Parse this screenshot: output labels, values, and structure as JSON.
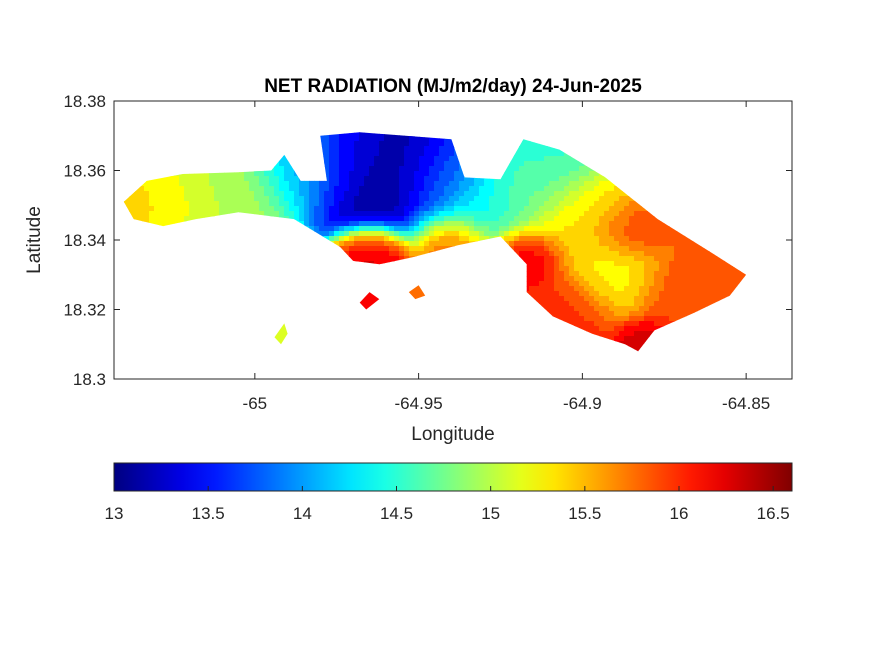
{
  "chart_data": {
    "type": "heatmap",
    "title": "NET RADIATION (MJ/m2/day) 24-Jun-2025",
    "xlabel": "Longitude",
    "ylabel": "Latitude",
    "xlim": [
      -65.043,
      -64.836
    ],
    "ylim": [
      18.3,
      18.38
    ],
    "x_ticks": [
      -65,
      -64.95,
      -64.9,
      -64.85
    ],
    "x_tick_labels": [
      "-65",
      "-64.95",
      "-64.9",
      "-64.85"
    ],
    "y_ticks": [
      18.3,
      18.32,
      18.34,
      18.36,
      18.38
    ],
    "y_tick_labels": [
      "18.3",
      "18.32",
      "18.34",
      "18.36",
      "18.38"
    ],
    "grid": false,
    "colormap": "jet",
    "colorbar": {
      "location": "bottom",
      "range": [
        13,
        16.6
      ],
      "ticks": [
        13,
        13.5,
        14,
        14.5,
        15,
        15.5,
        16,
        16.5
      ],
      "tick_labels": [
        "13",
        "13.5",
        "14",
        "14.5",
        "15",
        "15.5",
        "16",
        "16.5"
      ]
    },
    "island_outline": [
      [
        -65.04,
        18.351
      ],
      [
        -65.033,
        18.357
      ],
      [
        -65.022,
        18.359
      ],
      [
        -65.005,
        18.3595
      ],
      [
        -64.995,
        18.36
      ],
      [
        -64.991,
        18.3645
      ],
      [
        -64.986,
        18.357
      ],
      [
        -64.978,
        18.357
      ],
      [
        -64.98,
        18.37
      ],
      [
        -64.968,
        18.371
      ],
      [
        -64.94,
        18.369
      ],
      [
        -64.936,
        18.358
      ],
      [
        -64.925,
        18.3575
      ],
      [
        -64.918,
        18.369
      ],
      [
        -64.907,
        18.366
      ],
      [
        -64.893,
        18.358
      ],
      [
        -64.877,
        18.346
      ],
      [
        -64.86,
        18.336
      ],
      [
        -64.85,
        18.33
      ],
      [
        -64.855,
        18.324
      ],
      [
        -64.866,
        18.319
      ],
      [
        -64.878,
        18.314
      ],
      [
        -64.883,
        18.308
      ],
      [
        -64.887,
        18.31
      ],
      [
        -64.897,
        18.313
      ],
      [
        -64.909,
        18.318
      ],
      [
        -64.917,
        18.325
      ],
      [
        -64.917,
        18.333
      ],
      [
        -64.925,
        18.341
      ],
      [
        -64.938,
        18.3385
      ],
      [
        -64.952,
        18.335
      ],
      [
        -64.962,
        18.333
      ],
      [
        -64.97,
        18.334
      ],
      [
        -64.974,
        18.338
      ],
      [
        -64.988,
        18.346
      ],
      [
        -65.005,
        18.348
      ],
      [
        -65.018,
        18.346
      ],
      [
        -65.028,
        18.344
      ],
      [
        -65.037,
        18.346
      ],
      [
        -65.04,
        18.351
      ]
    ],
    "islets": [
      [
        [
          -64.994,
          18.312
        ],
        [
          -64.991,
          18.316
        ],
        [
          -64.99,
          18.313
        ],
        [
          -64.992,
          18.31
        ]
      ],
      [
        [
          -64.968,
          18.322
        ],
        [
          -64.965,
          18.325
        ],
        [
          -64.962,
          18.323
        ],
        [
          -64.966,
          18.32
        ]
      ],
      [
        [
          -64.953,
          18.325
        ],
        [
          -64.95,
          18.327
        ],
        [
          -64.948,
          18.324
        ],
        [
          -64.951,
          18.323
        ]
      ]
    ],
    "hotspots": [
      {
        "lon": -64.957,
        "lat": 18.3585,
        "value": 13.0,
        "spread": 0.012
      },
      {
        "lon": -64.97,
        "lat": 18.366,
        "value": 13.3,
        "spread": 0.01
      },
      {
        "lon": -64.942,
        "lat": 18.36,
        "value": 13.7,
        "spread": 0.008
      },
      {
        "lon": -64.985,
        "lat": 18.364,
        "value": 14.2,
        "spread": 0.01
      },
      {
        "lon": -64.935,
        "lat": 18.351,
        "value": 14.3,
        "spread": 0.01
      },
      {
        "lon": -64.912,
        "lat": 18.363,
        "value": 14.5,
        "spread": 0.009
      },
      {
        "lon": -64.92,
        "lat": 18.355,
        "value": 14.7,
        "spread": 0.01
      },
      {
        "lon": -65.012,
        "lat": 18.356,
        "value": 15.0,
        "spread": 0.012
      },
      {
        "lon": -65.03,
        "lat": 18.352,
        "value": 15.4,
        "spread": 0.008
      },
      {
        "lon": -64.963,
        "lat": 18.335,
        "value": 16.3,
        "spread": 0.006
      },
      {
        "lon": -64.94,
        "lat": 18.34,
        "value": 16.1,
        "spread": 0.006
      },
      {
        "lon": -64.917,
        "lat": 18.335,
        "value": 16.3,
        "spread": 0.006
      },
      {
        "lon": -64.905,
        "lat": 18.32,
        "value": 16.0,
        "spread": 0.008
      },
      {
        "lon": -64.885,
        "lat": 18.342,
        "value": 16.0,
        "spread": 0.006
      },
      {
        "lon": -64.87,
        "lat": 18.325,
        "value": 15.9,
        "spread": 0.008
      },
      {
        "lon": -64.858,
        "lat": 18.33,
        "value": 15.8,
        "spread": 0.006
      },
      {
        "lon": -64.89,
        "lat": 18.33,
        "value": 15.2,
        "spread": 0.008
      },
      {
        "lon": -64.9,
        "lat": 18.346,
        "value": 15.4,
        "spread": 0.01
      },
      {
        "lon": -64.88,
        "lat": 18.31,
        "value": 16.3,
        "spread": 0.005
      }
    ]
  }
}
